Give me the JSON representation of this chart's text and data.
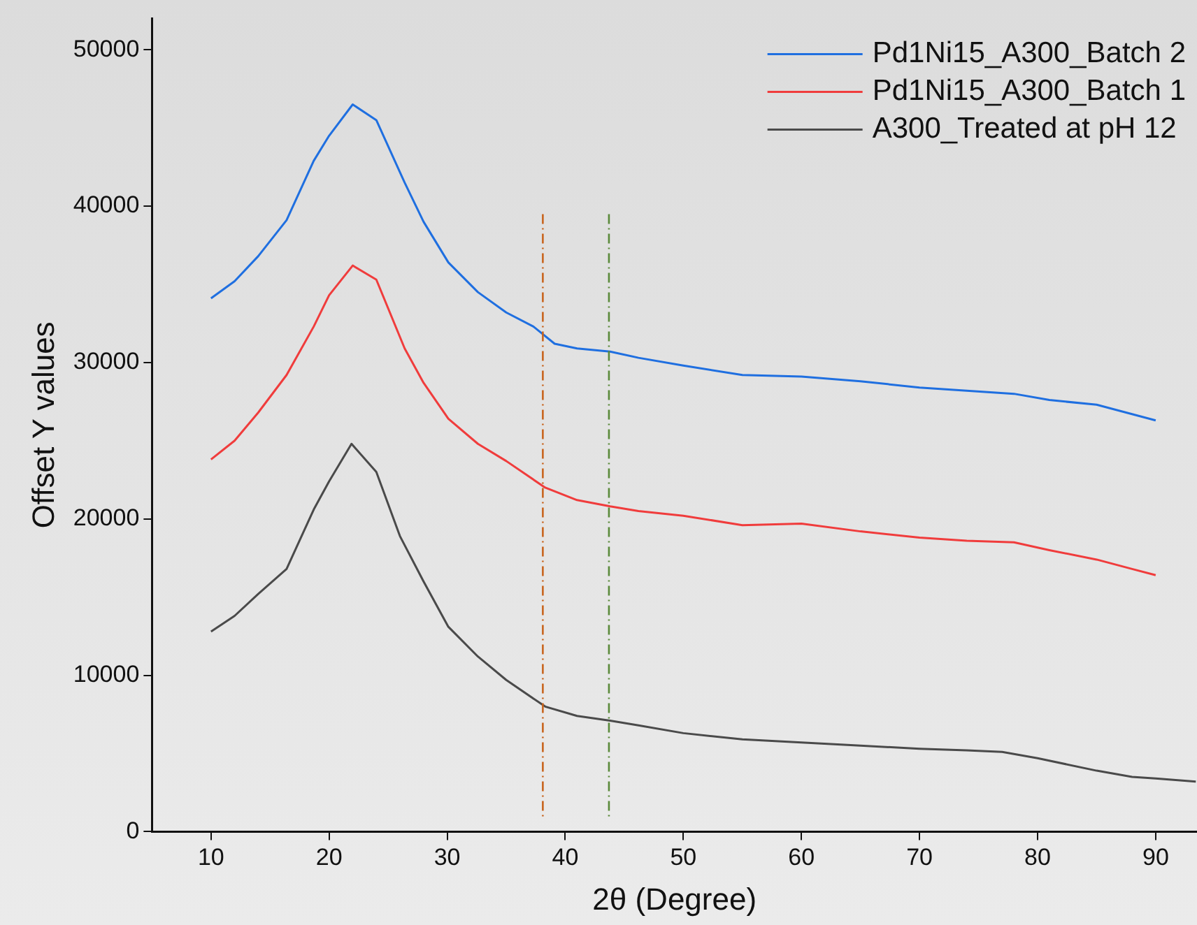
{
  "chart_data": {
    "type": "line",
    "xlabel": "2θ (Degree)",
    "ylabel": "Offset Y values",
    "xlim": [
      5,
      93.5
    ],
    "ylim": [
      0,
      52000
    ],
    "xticks": [
      10,
      20,
      30,
      40,
      50,
      60,
      70,
      80,
      90
    ],
    "yticks": [
      0,
      10000,
      20000,
      30000,
      40000,
      50000
    ],
    "grid": false,
    "legend": "top right",
    "marker": "none",
    "line_style": "solid",
    "series": [
      {
        "name": "Pd1Ni15_A300_Batch 2",
        "color": "#1f6fe0",
        "x": [
          10,
          12,
          14,
          16.4,
          18.7,
          20,
          22,
          24,
          26.4,
          28,
          30.1,
          32.6,
          35,
          37.3,
          39.1,
          41,
          43.8,
          46.2,
          50,
          55,
          60,
          65,
          70,
          74,
          78,
          81,
          85,
          88,
          90
        ],
        "values": [
          34100,
          35200,
          36800,
          39100,
          42900,
          44500,
          46500,
          45500,
          41500,
          39000,
          36400,
          34500,
          33200,
          32300,
          31200,
          30900,
          30700,
          30300,
          29800,
          29200,
          29100,
          28800,
          28400,
          28200,
          28000,
          27600,
          27300,
          26700,
          26300
        ]
      },
      {
        "name": "Pd1Ni15_A300_Batch 1",
        "color": "#f03c3c",
        "x": [
          10,
          12,
          14,
          16.4,
          18.7,
          20,
          22,
          24,
          26.4,
          28,
          30.1,
          32.6,
          35,
          38.3,
          41,
          43.8,
          46.2,
          50,
          55,
          60,
          65,
          70,
          74,
          78,
          81,
          85,
          88,
          90
        ],
        "values": [
          23800,
          25000,
          26800,
          29200,
          32300,
          34300,
          36200,
          35300,
          30900,
          28700,
          26400,
          24800,
          23700,
          22000,
          21200,
          20800,
          20500,
          20200,
          19600,
          19700,
          19200,
          18800,
          18600,
          18500,
          18000,
          17400,
          16800,
          16400
        ]
      },
      {
        "name": "A300_Treated at pH 12",
        "color": "#4a4a4a",
        "x": [
          10,
          12,
          14,
          16.4,
          18.7,
          20,
          21.9,
          24,
          26,
          28,
          30.1,
          32.6,
          35,
          38.3,
          41,
          43.8,
          46.2,
          50,
          55,
          60,
          65,
          70,
          74,
          77,
          80,
          85,
          88,
          90,
          93.4
        ],
        "values": [
          12800,
          13800,
          15200,
          16800,
          20600,
          22400,
          24800,
          23000,
          18900,
          16000,
          13100,
          11200,
          9700,
          8000,
          7400,
          7100,
          6800,
          6300,
          5900,
          5700,
          5500,
          5300,
          5200,
          5100,
          4700,
          3900,
          3500,
          3400,
          3200
        ]
      }
    ],
    "ref_lines": [
      {
        "axis": "x",
        "value": 38.1,
        "color": "#c8641e",
        "line_style": "dashed"
      },
      {
        "axis": "x",
        "value": 43.7,
        "color": "#5a8a3a",
        "line_style": "dashed"
      }
    ]
  }
}
